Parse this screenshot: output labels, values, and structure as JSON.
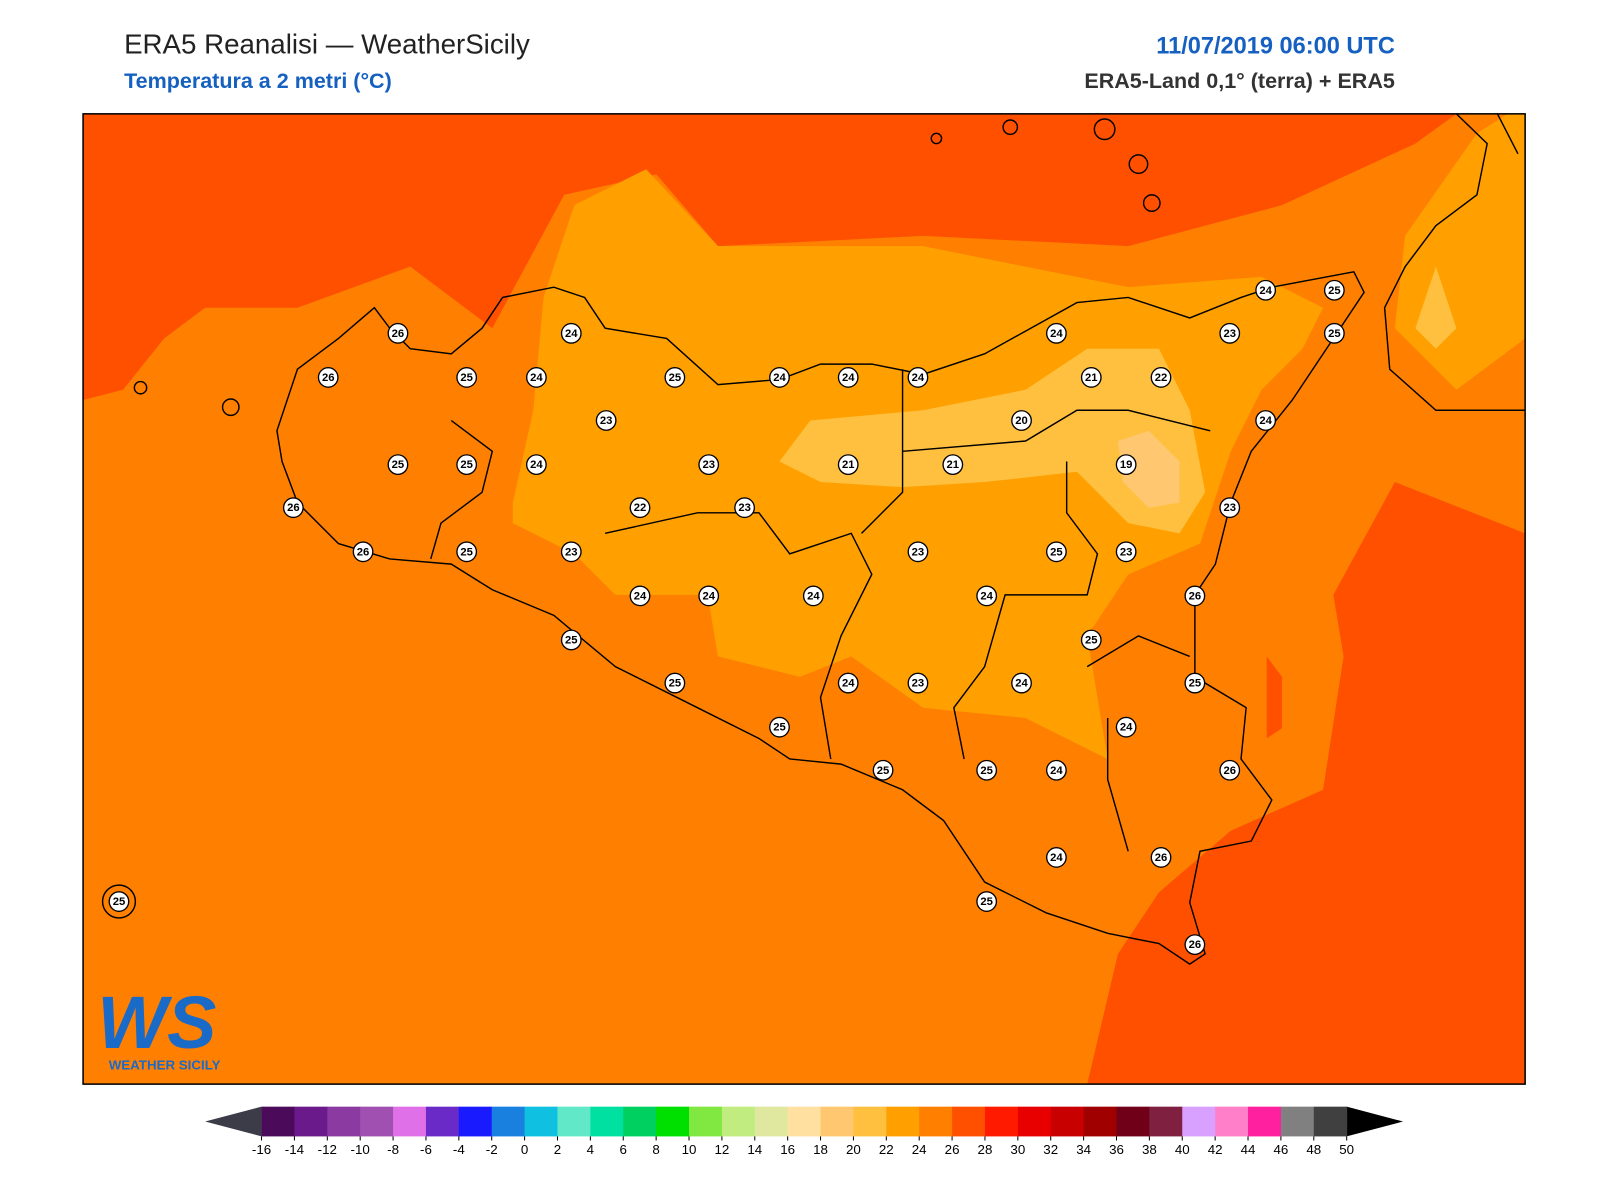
{
  "header": {
    "title": "ERA5 Reanalisi — WeatherSicily",
    "subtitle": "Temperatura a 2 metri (°C)",
    "datetime": "11/07/2019 06:00 UTC",
    "source": "ERA5-Land 0,1° (terra) + ERA5"
  },
  "logo": {
    "mark": "WS",
    "text": "WEATHER SICILY"
  },
  "stations": {
    "values": [
      26,
      24,
      24,
      23,
      25,
      24,
      25,
      26,
      25,
      24,
      25,
      24,
      24,
      24,
      21,
      22,
      23,
      20,
      24,
      25,
      25,
      24,
      23,
      21,
      21,
      19,
      26,
      22,
      23,
      23,
      26,
      25,
      23,
      23,
      25,
      23,
      24,
      24,
      24,
      24,
      26,
      25,
      25,
      25,
      24,
      23,
      24,
      25,
      25,
      24,
      25,
      25,
      24,
      26,
      24,
      26,
      25,
      25,
      26
    ]
  },
  "colorbar": {
    "ticks": [
      -16,
      -14,
      -12,
      -10,
      -8,
      -6,
      -4,
      -2,
      0,
      2,
      4,
      6,
      8,
      10,
      12,
      14,
      16,
      18,
      20,
      22,
      24,
      26,
      28,
      30,
      32,
      34,
      36,
      38,
      40,
      42,
      44,
      46,
      48,
      50
    ],
    "colors": [
      "#4b0a5a",
      "#6a1a8a",
      "#8a3aa0",
      "#a050b0",
      "#e070e8",
      "#6a2ac8",
      "#1a1aff",
      "#1a80e0",
      "#10c0e0",
      "#60e8c8",
      "#00e0a0",
      "#00d060",
      "#00e000",
      "#80e840",
      "#c0ec80",
      "#e0e8a0",
      "#ffe0a0",
      "#ffc870",
      "#ffc040",
      "#ffa000",
      "#ff8000",
      "#ff5000",
      "#ff1a00",
      "#e80000",
      "#c80000",
      "#a00000",
      "#700018",
      "#802040",
      "#d8a0ff",
      "#ff80c8",
      "#ff20a0",
      "#808080",
      "#404040"
    ],
    "under_color": "#3c3c48",
    "over_color": "#000000"
  }
}
